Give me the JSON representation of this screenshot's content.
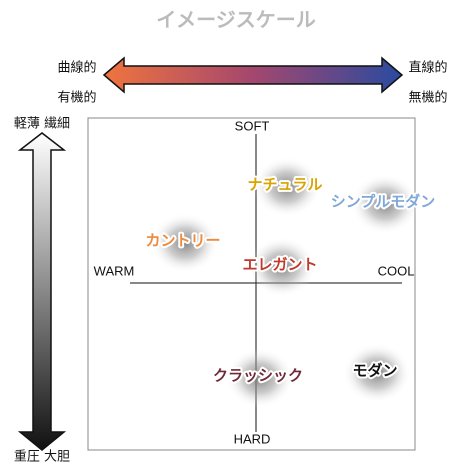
{
  "header": {
    "title": "イメージスケール"
  },
  "horizontal_arrow": {
    "left_top": "曲線的",
    "left_bottom": "有機的",
    "right_top": "直線的",
    "right_bottom": "無機的"
  },
  "vertical_arrow": {
    "top": "軽薄 繊細",
    "bottom": "重圧 大胆"
  },
  "axes": {
    "top": "SOFT",
    "bottom": "HARD",
    "left": "WARM",
    "right": "COOL"
  },
  "nodes": [
    {
      "label": "ナチュラル",
      "color": "#d9a300"
    },
    {
      "label": "シンプルモダン",
      "color": "#7fa7d8"
    },
    {
      "label": "カントリー",
      "color": "#ee8a3c"
    },
    {
      "label": "エレガント",
      "color": "#c0392b"
    },
    {
      "label": "クラッシック",
      "color": "#6e2a3a"
    },
    {
      "label": "モダン",
      "color": "#111111"
    }
  ]
}
